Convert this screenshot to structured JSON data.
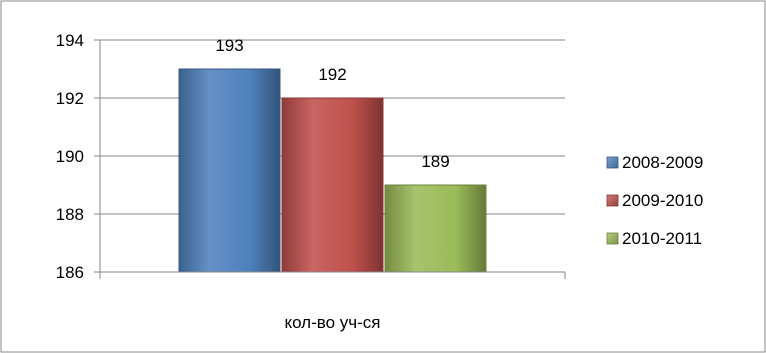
{
  "chart_data": {
    "type": "bar",
    "categories": [
      "кол-во уч-ся"
    ],
    "series": [
      {
        "name": "2008-2009",
        "values": [
          193
        ],
        "color": "#4F81BD"
      },
      {
        "name": "2009-2010",
        "values": [
          192
        ],
        "color": "#C0504D"
      },
      {
        "name": "2010-2011",
        "values": [
          189
        ],
        "color": "#9BBB59"
      }
    ],
    "data_labels": [
      "193",
      "192",
      "189"
    ],
    "y_ticks": [
      186,
      188,
      190,
      192,
      194
    ],
    "ylim": [
      186,
      194
    ],
    "grid": true,
    "legend_position": "right",
    "title": "",
    "xlabel": "",
    "ylabel": ""
  }
}
